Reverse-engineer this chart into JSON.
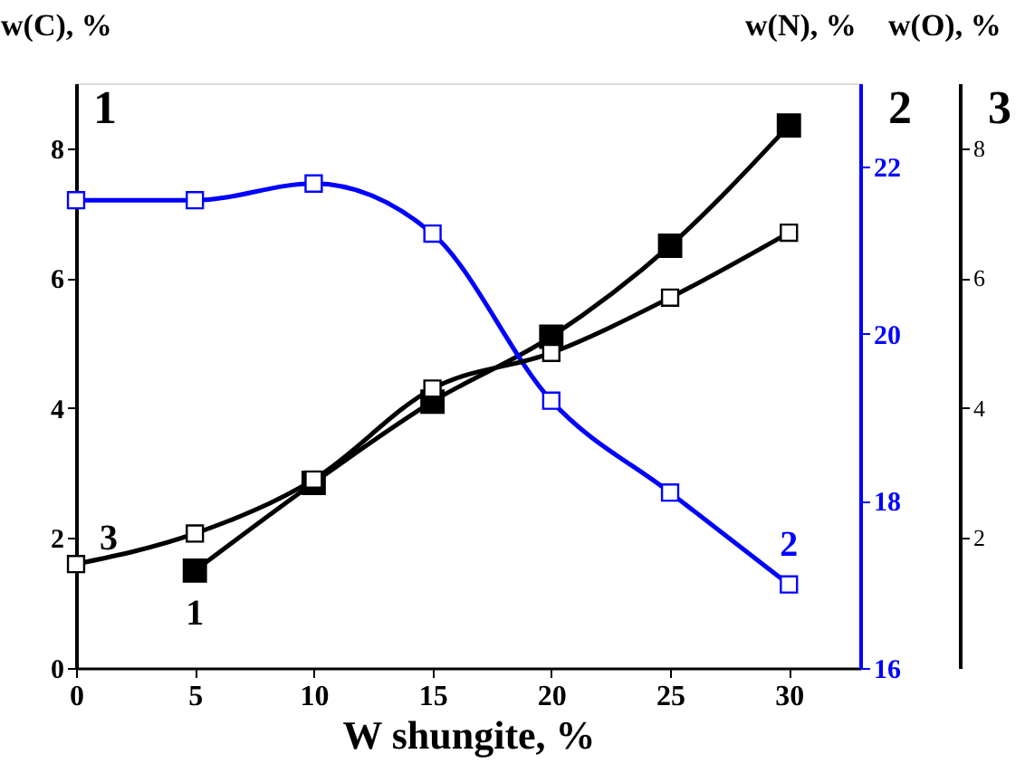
{
  "chart_data": {
    "type": "line",
    "xlabel": "W shungite, %",
    "ylabel": "w(C), %",
    "y2label": "w(N), %",
    "y3label": "w(O), %",
    "x": [
      0,
      5,
      10,
      15,
      20,
      25,
      30
    ],
    "series": [
      {
        "name": "1",
        "color": "#000000",
        "axis": "y",
        "values": [
          null,
          1.5,
          2.85,
          4.1,
          5.1,
          6.5,
          8.35
        ]
      },
      {
        "name": "2",
        "color": "#0000ff",
        "axis": "y2",
        "values": [
          21.6,
          21.6,
          21.8,
          21.2,
          19.2,
          18.1,
          17.0
        ]
      },
      {
        "name": "3",
        "color": "#000000",
        "axis": "y3",
        "values": [
          1.6,
          2.07,
          2.9,
          4.3,
          4.85,
          5.7,
          6.7
        ]
      }
    ],
    "xlim": [
      0,
      33
    ],
    "xticks": [
      0,
      5,
      10,
      15,
      20,
      25,
      30
    ],
    "ylim": [
      0,
      9
    ],
    "yticks": [
      0,
      2,
      4,
      6,
      8
    ],
    "y2lim": [
      16,
      23
    ],
    "y2ticks": [
      16,
      18,
      20,
      22
    ],
    "y3lim": [
      0,
      9
    ],
    "y3ticks": [
      2,
      4,
      6,
      8
    ],
    "marker": "square",
    "line_style": "solid",
    "grid": false,
    "legend": false
  }
}
